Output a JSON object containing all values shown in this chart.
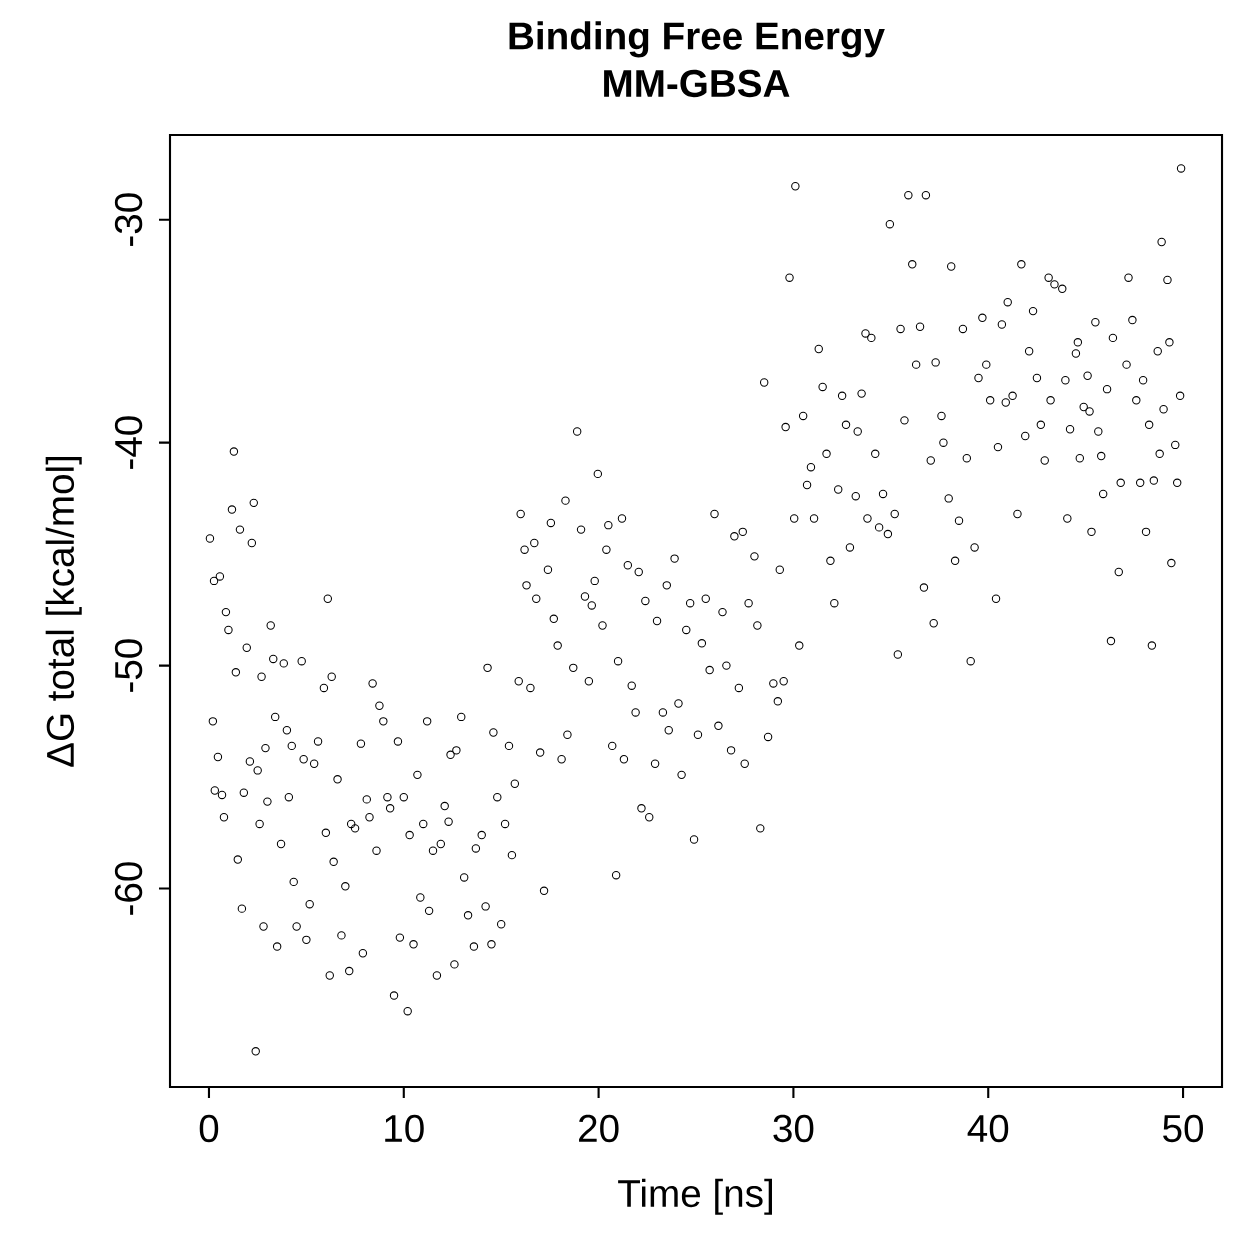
{
  "chart_data": {
    "type": "scatter",
    "title": "Binding Free Energy",
    "subtitle": "MM-GBSA",
    "xlabel": "Time [ns]",
    "ylabel": "ΔG total [kcal/mol]",
    "xlim": [
      -2,
      52
    ],
    "ylim": [
      -68.9,
      -26.2
    ],
    "xticks": [
      0,
      10,
      20,
      30,
      40,
      50
    ],
    "yticks": [
      -30,
      -40,
      -50,
      -60
    ],
    "marker": "circle",
    "grid": false,
    "color": "#000000",
    "x": [
      0.05,
      0.2,
      0.26,
      0.56,
      0.46,
      0.3,
      0.67,
      0.77,
      0.87,
      1.0,
      1.18,
      1.28,
      1.38,
      1.48,
      1.59,
      1.69,
      1.79,
      1.94,
      2.1,
      2.2,
      2.3,
      2.4,
      2.5,
      2.6,
      2.7,
      2.8,
      2.9,
      3.0,
      3.17,
      3.3,
      3.4,
      3.5,
      3.7,
      3.84,
      4.0,
      4.1,
      4.25,
      4.35,
      4.5,
      4.76,
      4.86,
      5.0,
      5.17,
      5.4,
      5.6,
      5.9,
      6.0,
      6.1,
      6.2,
      6.3,
      6.4,
      6.6,
      6.8,
      7.0,
      7.2,
      7.3,
      7.5,
      7.8,
      7.9,
      8.1,
      8.24,
      8.4,
      8.6,
      8.75,
      8.95,
      9.16,
      9.3,
      9.5,
      9.7,
      9.8,
      10.0,
      10.2,
      10.3,
      10.5,
      10.7,
      10.85,
      11.0,
      11.2,
      11.3,
      11.5,
      11.7,
      11.9,
      12.1,
      12.3,
      12.4,
      12.6,
      12.7,
      12.95,
      13.1,
      13.3,
      13.6,
      13.7,
      14.0,
      14.2,
      14.3,
      14.5,
      14.6,
      14.8,
      15.0,
      15.2,
      15.4,
      15.55,
      15.7,
      15.9,
      16.0,
      16.2,
      16.3,
      16.5,
      16.7,
      16.8,
      17.0,
      17.2,
      17.4,
      17.55,
      17.7,
      17.9,
      18.1,
      18.3,
      18.4,
      18.7,
      18.9,
      19.1,
      19.3,
      19.5,
      19.65,
      19.8,
      19.96,
      20.2,
      20.4,
      20.5,
      20.7,
      20.9,
      21.0,
      21.2,
      21.3,
      21.5,
      21.7,
      21.9,
      22.06,
      22.2,
      22.4,
      22.6,
      22.9,
      23.0,
      23.3,
      23.5,
      23.6,
      23.9,
      24.1,
      24.26,
      24.5,
      24.7,
      24.9,
      25.1,
      25.3,
      25.5,
      25.7,
      25.95,
      26.15,
      26.36,
      26.56,
      26.8,
      26.97,
      27.2,
      27.4,
      27.5,
      27.7,
      28.0,
      28.15,
      28.3,
      28.5,
      28.7,
      28.97,
      29.2,
      29.3,
      29.5,
      29.6,
      29.8,
      30.04,
      30.1,
      30.3,
      30.5,
      30.7,
      30.9,
      31.06,
      31.3,
      31.5,
      31.7,
      31.9,
      32.1,
      32.3,
      32.5,
      32.7,
      32.9,
      33.2,
      33.3,
      33.5,
      33.7,
      33.8,
      34.0,
      34.2,
      34.4,
      34.6,
      34.85,
      34.95,
      35.2,
      35.36,
      35.5,
      35.7,
      35.9,
      36.1,
      36.3,
      36.5,
      36.7,
      36.8,
      37.05,
      37.2,
      37.3,
      37.6,
      37.7,
      37.97,
      38.1,
      38.3,
      38.5,
      38.7,
      38.9,
      39.1,
      39.3,
      39.5,
      39.7,
      39.9,
      40.1,
      40.4,
      40.5,
      40.7,
      40.9,
      41.0,
      41.25,
      41.5,
      41.7,
      41.9,
      42.1,
      42.3,
      42.5,
      42.7,
      42.9,
      43.1,
      43.2,
      43.4,
      43.8,
      43.96,
      44.06,
      44.2,
      44.5,
      44.6,
      44.7,
      44.9,
      45.1,
      45.2,
      45.3,
      45.5,
      45.65,
      45.8,
      45.9,
      46.1,
      46.3,
      46.4,
      46.7,
      46.8,
      47.1,
      47.2,
      47.4,
      47.6,
      47.8,
      47.95,
      48.1,
      48.26,
      48.4,
      48.5,
      48.7,
      48.8,
      48.9,
      49.0,
      49.2,
      49.3,
      49.4,
      49.6,
      49.7,
      49.85,
      49.9
    ],
    "values": [
      -44.3,
      -52.5,
      -46.2,
      -46.0,
      -54.1,
      -55.6,
      -55.8,
      -56.8,
      -47.6,
      -48.4,
      -43.0,
      -40.4,
      -50.3,
      -58.7,
      -43.9,
      -60.9,
      -55.7,
      -49.2,
      -54.3,
      -44.5,
      -42.7,
      -67.3,
      -54.7,
      -57.1,
      -50.5,
      -61.7,
      -53.7,
      -56.1,
      -48.2,
      -49.7,
      -52.3,
      -62.6,
      -58.0,
      -49.9,
      -52.9,
      -55.9,
      -53.6,
      -59.7,
      -61.7,
      -49.8,
      -54.2,
      -62.3,
      -60.7,
      -54.4,
      -53.4,
      -51.0,
      -57.5,
      -47.0,
      -63.9,
      -50.5,
      -58.8,
      -55.1,
      -62.1,
      -59.9,
      -63.7,
      -57.1,
      -57.3,
      -53.5,
      -62.9,
      -56.0,
      -56.8,
      -50.8,
      -58.3,
      -51.8,
      -52.5,
      -55.9,
      -56.4,
      -64.8,
      -53.4,
      -62.2,
      -55.9,
      -65.5,
      -57.6,
      -62.5,
      -54.9,
      -60.4,
      -57.1,
      -52.5,
      -61.0,
      -58.3,
      -63.9,
      -58.0,
      -56.3,
      -57.0,
      -54.0,
      -63.4,
      -53.8,
      -52.3,
      -59.5,
      -61.2,
      -62.6,
      -58.2,
      -57.6,
      -60.8,
      -50.1,
      -62.5,
      -53.0,
      -55.9,
      -61.6,
      -57.1,
      -53.6,
      -58.5,
      -55.3,
      -50.7,
      -43.2,
      -44.8,
      -46.4,
      -51.0,
      -44.5,
      -47.0,
      -53.9,
      -60.1,
      -45.7,
      -43.6,
      -47.9,
      -49.1,
      -54.2,
      -42.6,
      -53.1,
      -50.1,
      -39.5,
      -43.9,
      -46.9,
      -50.7,
      -47.3,
      -46.2,
      -41.4,
      -48.2,
      -44.8,
      -43.7,
      -53.6,
      -59.4,
      -49.8,
      -43.4,
      -54.2,
      -45.5,
      -50.9,
      -52.1,
      -45.8,
      -56.4,
      -47.1,
      -56.8,
      -54.4,
      -48.0,
      -52.1,
      -46.4,
      -52.9,
      -45.2,
      -51.7,
      -54.9,
      -48.4,
      -47.2,
      -57.8,
      -53.1,
      -49.0,
      -47.0,
      -50.2,
      -43.2,
      -52.7,
      -47.6,
      -50.0,
      -53.8,
      -44.2,
      -51.0,
      -44.0,
      -54.4,
      -47.2,
      -45.1,
      -48.2,
      -57.3,
      -37.3,
      -53.2,
      -50.8,
      -51.6,
      -45.7,
      -50.7,
      -39.3,
      -32.6,
      -43.4,
      -28.5,
      -49.1,
      -38.8,
      -41.9,
      -41.1,
      -43.4,
      -35.8,
      -37.5,
      -40.5,
      -45.3,
      -47.2,
      -42.1,
      -37.9,
      -39.2,
      -44.7,
      -42.4,
      -39.5,
      -37.8,
      -35.1,
      -43.4,
      -35.3,
      -40.5,
      -43.8,
      -42.3,
      -44.1,
      -30.2,
      -43.2,
      -49.5,
      -34.9,
      -39.0,
      -28.9,
      -32.0,
      -36.5,
      -34.8,
      -46.5,
      -28.9,
      -40.8,
      -48.1,
      -36.4,
      -38.8,
      -40.0,
      -42.5,
      -32.1,
      -45.3,
      -43.5,
      -34.9,
      -40.7,
      -49.8,
      -44.7,
      -37.1,
      -34.4,
      -36.5,
      -38.1,
      -47.0,
      -40.2,
      -34.7,
      -38.2,
      -33.7,
      -37.9,
      -43.2,
      -32.0,
      -39.7,
      -35.9,
      -34.1,
      -37.1,
      -39.2,
      -40.8,
      -32.6,
      -38.1,
      -32.9,
      -33.1,
      -37.2,
      -43.4,
      -39.4,
      -36.0,
      -35.5,
      -40.7,
      -38.4,
      -37.0,
      -38.6,
      -44.0,
      -34.6,
      -39.5,
      -40.6,
      -42.3,
      -37.6,
      -48.9,
      -35.3,
      -45.8,
      -41.8,
      -36.5,
      -32.6,
      -34.5,
      -38.1,
      -41.8,
      -37.2,
      -44.0,
      -39.2,
      -49.1,
      -41.7,
      -35.9,
      -40.5,
      -31.0,
      -38.5,
      -32.7,
      -35.5,
      -45.4,
      -40.1,
      -41.8,
      -37.9,
      -27.7
    ]
  }
}
